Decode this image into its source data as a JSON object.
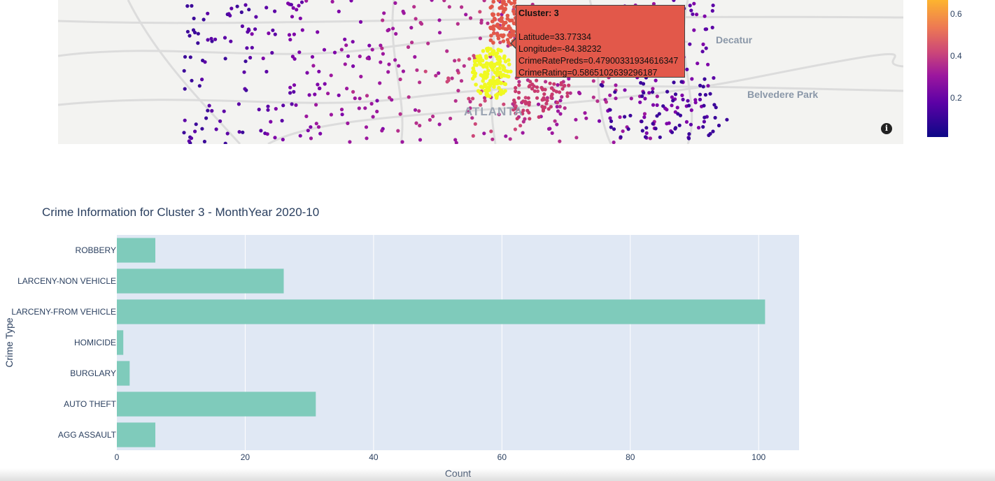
{
  "map": {
    "labels": {
      "decatur": "Decatur",
      "belvedere": "Belvedere Park",
      "atlanta": "ATLANTA"
    },
    "info_icon": "info-icon",
    "tooltip": {
      "title": "Cluster: 3",
      "latitude": "Latitude=33.77334",
      "longitude": "Longitude=-84.38232",
      "crime_rate_preds": "CrimeRatePreds=0.47900331934616347",
      "crime_rating": "CrimeRating=0.5865102639296187",
      "background_color": "#e2584a"
    },
    "colorbar": {
      "ticks": [
        "0.6",
        "0.4",
        "0.2"
      ]
    }
  },
  "chart_data": {
    "type": "bar",
    "orientation": "horizontal",
    "title": "Crime Information for Cluster 3 - MonthYear 2020-10",
    "xlabel": "Count",
    "ylabel": "Crime Type",
    "categories": [
      "ROBBERY",
      "LARCENY-NON VEHICLE",
      "LARCENY-FROM VEHICLE",
      "HOMICIDE",
      "BURGLARY",
      "AUTO THEFT",
      "AGG ASSAULT"
    ],
    "values": [
      6,
      26,
      101,
      1,
      2,
      31,
      6
    ],
    "xlim": [
      0,
      106.3
    ],
    "xticks": [
      0,
      20,
      40,
      60,
      80,
      100
    ],
    "grid": true,
    "bar_color": "#7fcbbb",
    "plot_bg": "#e0e8f4"
  }
}
